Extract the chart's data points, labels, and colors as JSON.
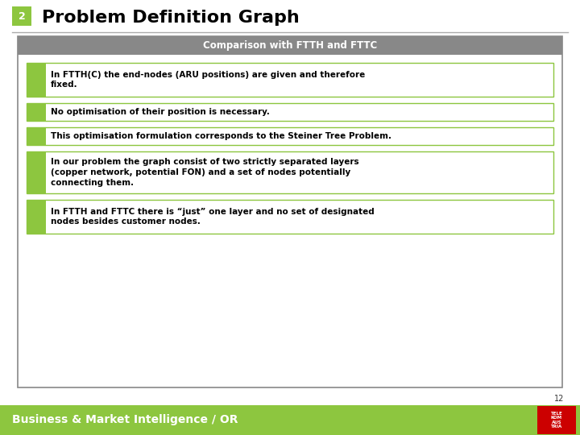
{
  "title": "Problem Definition Graph",
  "slide_number": "2",
  "section_header": "Comparison with FTTH and FTTC",
  "bullet_items": [
    "In FTTH(C) the end-nodes (ARU positions) are given and therefore\nfixed.",
    "No optimisation of their position is necessary.",
    "This optimisation formulation corresponds to the Steiner Tree Problem.",
    "In our problem the graph consist of two strictly separated layers\n(copper network, potential FON) and a set of nodes potentially\nconnecting them.",
    "In FTTH and FTTC there is “just” one layer and no set of designated\nnodes besides customer nodes."
  ],
  "bullet_heights": [
    42,
    22,
    22,
    52,
    42
  ],
  "title_color": "#000000",
  "slide_number_bg": "#8dc63f",
  "slide_number_color": "#ffffff",
  "header_bg": "#888888",
  "header_text_color": "#ffffff",
  "bullet_bg": "#ffffff",
  "bullet_border_color": "#8dc63f",
  "bullet_icon_color": "#8dc63f",
  "outer_box_bg": "#ffffff",
  "outer_box_border": "#888888",
  "footer_bg": "#8dc63f",
  "footer_text": "Business & Market Intelligence / OR",
  "footer_text_color": "#ffffff",
  "page_number": "12",
  "page_bg": "#ffffff",
  "title_underline_color": "#aaaaaa",
  "logo_bg": "#cc0000",
  "logo_text": "TELE\nKOM\nAUS\nTRIA"
}
